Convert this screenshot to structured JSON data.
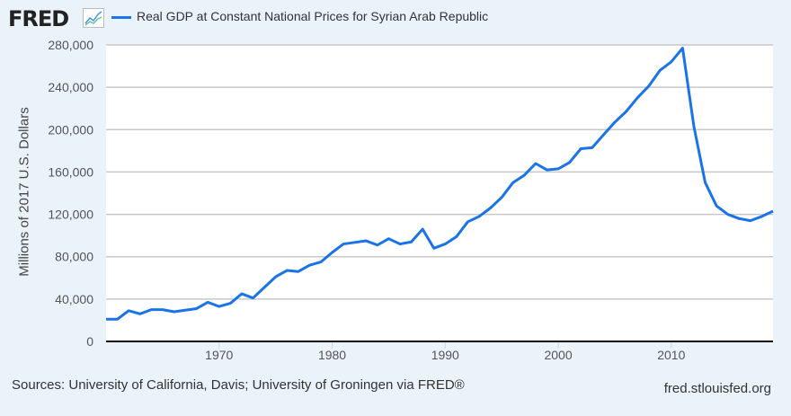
{
  "header": {
    "logo": "FRED",
    "logo_icon": "chart-line-icon"
  },
  "footer": {
    "sources": "Sources: University of California, Davis; University of Groningen via FRED®",
    "site": "fred.stlouisfed.org"
  },
  "chart_data": {
    "type": "line",
    "title": "",
    "ylabel": "Millions of 2017 U.S. Dollars",
    "xlabel": "",
    "xlim": [
      1960,
      2019
    ],
    "ylim": [
      0,
      280000
    ],
    "x_ticks": [
      1970,
      1980,
      1990,
      2000,
      2010
    ],
    "y_ticks": [
      0,
      40000,
      80000,
      120000,
      160000,
      200000,
      240000,
      280000
    ],
    "y_tick_labels": [
      "0",
      "40,000",
      "80,000",
      "120,000",
      "160,000",
      "200,000",
      "240,000",
      "280,000"
    ],
    "x_tick_labels": [
      "1970",
      "1980",
      "1990",
      "2000",
      "2010"
    ],
    "grid": true,
    "legend_placement": "top",
    "series": [
      {
        "name": "Real GDP at Constant National Prices for Syrian Arab Republic",
        "color": "#1a73e8",
        "x": [
          1960,
          1961,
          1962,
          1963,
          1964,
          1965,
          1966,
          1967,
          1968,
          1969,
          1970,
          1971,
          1972,
          1973,
          1974,
          1975,
          1976,
          1977,
          1978,
          1979,
          1980,
          1981,
          1982,
          1983,
          1984,
          1985,
          1986,
          1987,
          1988,
          1989,
          1990,
          1991,
          1992,
          1993,
          1994,
          1995,
          1996,
          1997,
          1998,
          1999,
          2000,
          2001,
          2002,
          2003,
          2004,
          2005,
          2006,
          2007,
          2008,
          2009,
          2010,
          2011,
          2012,
          2013,
          2014,
          2015,
          2016,
          2017,
          2018,
          2019
        ],
        "values": [
          21000,
          21000,
          29000,
          26000,
          30000,
          30000,
          28000,
          29500,
          31000,
          37000,
          33000,
          36000,
          45000,
          41000,
          51000,
          61000,
          67000,
          66000,
          72000,
          75000,
          84000,
          92000,
          93500,
          95000,
          91000,
          97000,
          92000,
          94000,
          106000,
          88000,
          92000,
          99000,
          113000,
          118000,
          126000,
          136000,
          150000,
          157000,
          168000,
          162000,
          163000,
          169000,
          182000,
          183000,
          195000,
          207000,
          217000,
          230000,
          241000,
          256000,
          264000,
          277000,
          203000,
          150000,
          128000,
          120000,
          116000,
          114000,
          118000,
          123000
        ]
      }
    ]
  }
}
